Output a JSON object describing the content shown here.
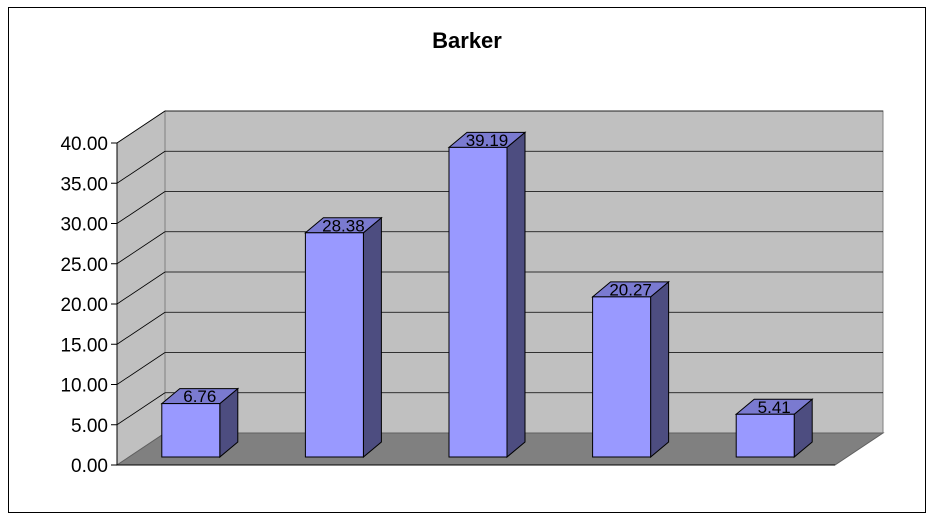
{
  "chart_data": {
    "type": "bar",
    "title": "Barker",
    "xlabel": "",
    "ylabel": "",
    "categories": [
      "",
      "",
      "",
      "",
      ""
    ],
    "values": [
      6.76,
      28.38,
      39.19,
      20.27,
      5.41
    ],
    "data_labels": [
      "6.76",
      "28.38",
      "39.19",
      "20.27",
      "5.41"
    ],
    "ylim": [
      0,
      40
    ],
    "y_ticks": [
      "0.00",
      "5.00",
      "10.00",
      "15.00",
      "20.00",
      "25.00",
      "30.00",
      "35.00",
      "40.00"
    ],
    "grid": true,
    "legend": "none",
    "three_d": true
  },
  "colors": {
    "bar_front": "#9999FF",
    "bar_side": "#4D4D80",
    "bar_top": "#7A7AD0",
    "wall": "#C0C0C0",
    "floor": "#808080",
    "grid": "#000000"
  }
}
